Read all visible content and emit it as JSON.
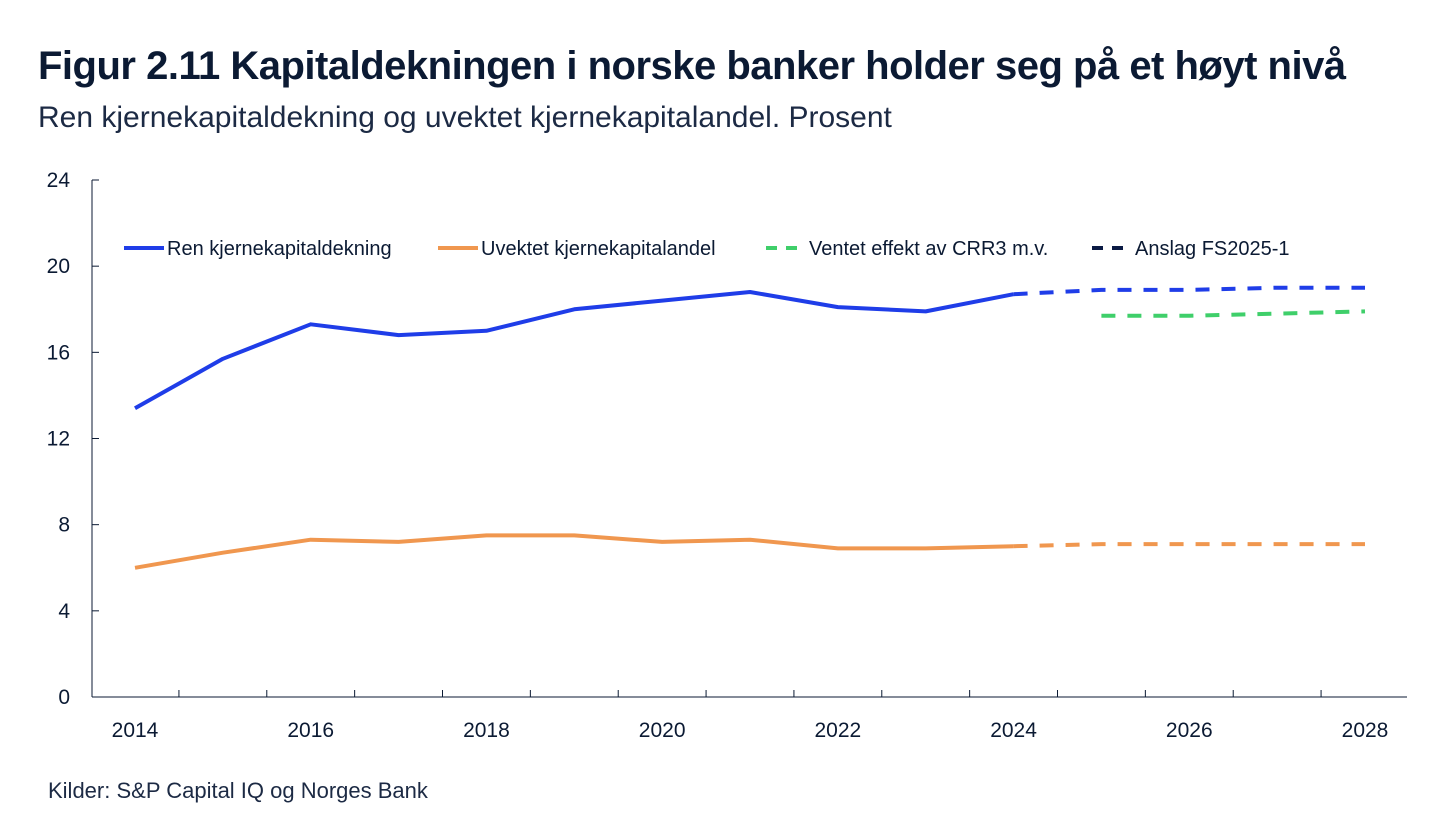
{
  "title": "Figur 2.11 Kapitaldekningen i norske banker holder seg på et høyt nivå",
  "subtitle": "Ren kjernekapitaldekning og uvektet kjernekapitalandel. Prosent",
  "source": "Kilder: S&P Capital IQ og Norges Bank",
  "chart_data": {
    "type": "line",
    "title": "Figur 2.11 Kapitaldekningen i norske banker holder seg på et høyt nivå",
    "subtitle": "Ren kjernekapitaldekning og uvektet kjernekapitalandel. Prosent",
    "xlim": [
      2014,
      2028
    ],
    "ylim": [
      0,
      24
    ],
    "x_ticks": [
      2014,
      2016,
      2018,
      2020,
      2022,
      2024,
      2026,
      2028
    ],
    "y_ticks": [
      0,
      4,
      8,
      12,
      16,
      20,
      24
    ],
    "grid": false,
    "legend_placement": "top",
    "series": [
      {
        "name": "Ren kjernekapitaldekning",
        "color": "#1f3de8",
        "style": "solid",
        "points": [
          [
            2014,
            13.4
          ],
          [
            2015,
            15.7
          ],
          [
            2016,
            17.3
          ],
          [
            2017,
            16.8
          ],
          [
            2018,
            17.0
          ],
          [
            2019,
            18.0
          ],
          [
            2020,
            18.4
          ],
          [
            2021,
            18.8
          ],
          [
            2022,
            18.1
          ],
          [
            2023,
            17.9
          ],
          [
            2024,
            18.7
          ]
        ]
      },
      {
        "name": "Uvektet kjernekapitalandel",
        "color": "#f0974f",
        "style": "solid",
        "points": [
          [
            2014,
            6.0
          ],
          [
            2015,
            6.7
          ],
          [
            2016,
            7.3
          ],
          [
            2017,
            7.2
          ],
          [
            2018,
            7.5
          ],
          [
            2019,
            7.5
          ],
          [
            2020,
            7.2
          ],
          [
            2021,
            7.3
          ],
          [
            2022,
            6.9
          ],
          [
            2023,
            6.9
          ],
          [
            2024,
            7.0
          ]
        ]
      },
      {
        "name": "Ventet effekt av CRR3 m.v.",
        "color": "#3fcf6a",
        "style": "dashed",
        "points": [
          [
            2025,
            17.7
          ],
          [
            2026,
            17.7
          ],
          [
            2027,
            17.8
          ],
          [
            2028,
            17.9
          ]
        ]
      },
      {
        "name": "Anslag FS2025-1",
        "color": "#0b1a44",
        "style": "dashed",
        "legend_only": true,
        "points": []
      },
      {
        "name": "",
        "color": "#1f3de8",
        "style": "dashed",
        "points": [
          [
            2024,
            18.7
          ],
          [
            2025,
            18.9
          ],
          [
            2026,
            18.9
          ],
          [
            2027,
            19.0
          ],
          [
            2028,
            19.0
          ]
        ]
      },
      {
        "name": "",
        "color": "#f0974f",
        "style": "dashed",
        "points": [
          [
            2024,
            7.0
          ],
          [
            2025,
            7.1
          ],
          [
            2026,
            7.1
          ],
          [
            2027,
            7.1
          ],
          [
            2028,
            7.1
          ]
        ]
      }
    ]
  }
}
